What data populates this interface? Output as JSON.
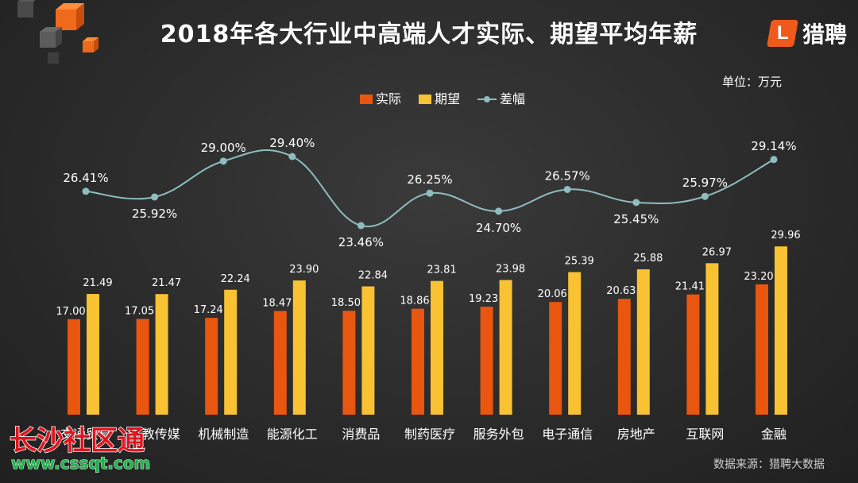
{
  "header": {
    "title": "2018年各大行业中高端人才实际、期望平均年薪",
    "brand_logo_letter": "L",
    "brand_name": "猎聘"
  },
  "unit_label": "单位：万元",
  "source_label": "数据来源：猎聘大数据",
  "watermark": {
    "text": "长沙社区通",
    "url": "www.cssqt.com"
  },
  "colors": {
    "actual": "#e8560f",
    "expected": "#f8c233",
    "diff": "#8fbcbf",
    "text": "#ffffff"
  },
  "chart_data": {
    "type": "bar",
    "legend_position": "top-center",
    "grid": false,
    "categories": [
      "交通贸易",
      "文教传媒",
      "机械制造",
      "能源化工",
      "消费品",
      "制药医疗",
      "服务外包",
      "电子通信",
      "房地产",
      "互联网",
      "金融"
    ],
    "series": [
      {
        "name": "实际",
        "type": "bar",
        "values": [
          17.0,
          17.05,
          17.24,
          18.47,
          18.5,
          18.86,
          19.23,
          20.06,
          20.63,
          21.41,
          23.2
        ]
      },
      {
        "name": "期望",
        "type": "bar",
        "values": [
          21.49,
          21.47,
          22.24,
          23.9,
          22.84,
          23.81,
          23.98,
          25.39,
          25.88,
          26.97,
          29.96
        ]
      },
      {
        "name": "差幅",
        "type": "line",
        "values": [
          26.41,
          25.92,
          29.0,
          29.4,
          23.46,
          26.25,
          24.7,
          26.57,
          25.45,
          25.97,
          29.14
        ]
      }
    ],
    "bar_labels": [
      [
        "17.00",
        "17.05",
        "17.24",
        "18.47",
        "18.50",
        "18.86",
        "19.23",
        "20.06",
        "20.63",
        "21.41",
        "23.20"
      ],
      [
        "21.49",
        "21.47",
        "22.24",
        "23.90",
        "22.84",
        "23.81",
        "23.98",
        "25.39",
        "25.88",
        "26.97",
        "29.96"
      ]
    ],
    "line_labels": [
      "26.41%",
      "25.92%",
      "29.00%",
      "29.40%",
      "23.46%",
      "26.25%",
      "24.70%",
      "26.57%",
      "25.45%",
      "25.97%",
      "29.14%"
    ]
  }
}
